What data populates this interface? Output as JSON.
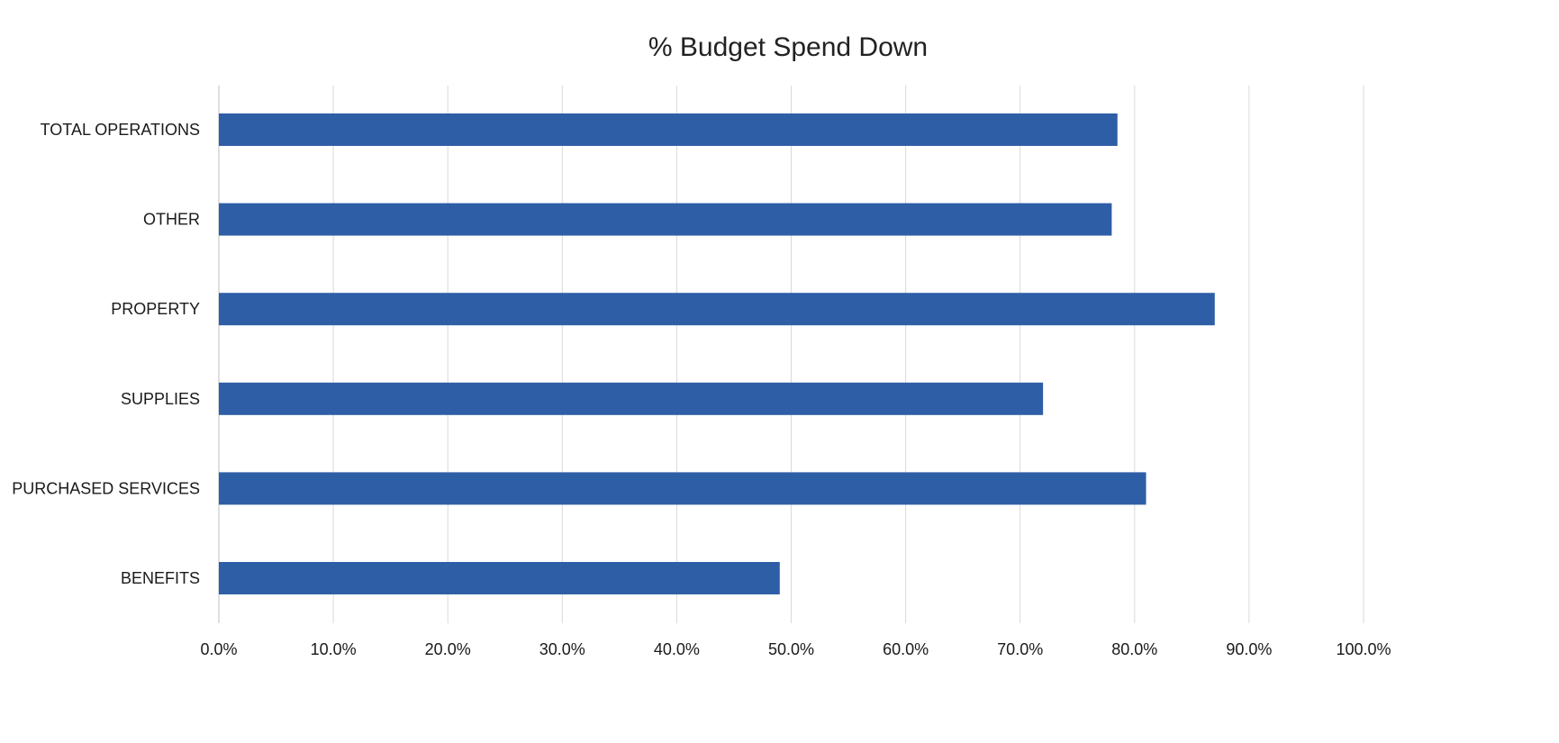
{
  "chart_data": {
    "type": "bar",
    "orientation": "horizontal",
    "title": "% Budget Spend Down",
    "xlabel": "",
    "ylabel": "",
    "categories": [
      "TOTAL OPERATIONS",
      "OTHER",
      "PROPERTY",
      "SUPPLIES",
      "PURCHASED SERVICES",
      "BENEFITS"
    ],
    "values": [
      78.5,
      78.0,
      87.0,
      72.0,
      81.0,
      49.0
    ],
    "xlim": [
      0,
      100
    ],
    "ticks": [
      0,
      10,
      20,
      30,
      40,
      50,
      60,
      70,
      80,
      90,
      100
    ],
    "tick_labels": [
      "0.0%",
      "10.0%",
      "20.0%",
      "30.0%",
      "40.0%",
      "50.0%",
      "60.0%",
      "70.0%",
      "80.0%",
      "90.0%",
      "100.0%"
    ],
    "grid": true,
    "legend": "none",
    "bar_color": "#2E5EA6",
    "grid_color": "#d9d9d9"
  }
}
